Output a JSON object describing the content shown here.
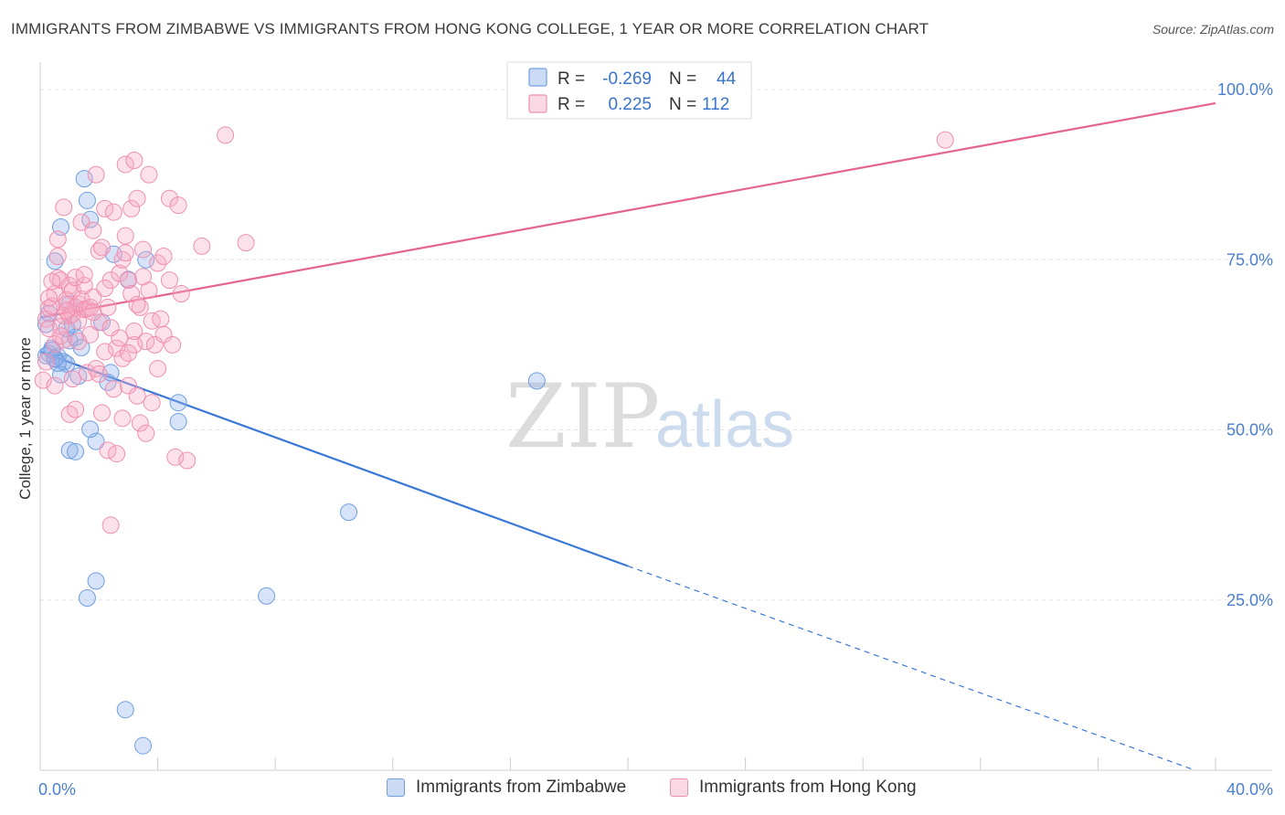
{
  "header": {
    "title": "IMMIGRANTS FROM ZIMBABWE VS IMMIGRANTS FROM HONG KONG COLLEGE, 1 YEAR OR MORE CORRELATION CHART",
    "source": "Source: ZipAtlas.com"
  },
  "watermark": {
    "zip": "ZIP",
    "atlas": "atlas"
  },
  "stats_legend": {
    "rows": [
      {
        "r_label": "R =",
        "r_value": "-0.269",
        "n_label": "N =",
        "n_value": "44",
        "color": "#6f9fe0"
      },
      {
        "r_label": "R =",
        "r_value": "0.225",
        "n_label": "N =",
        "n_value": "112",
        "color": "#ef8fb0"
      }
    ]
  },
  "chart_data": {
    "type": "scatter",
    "ylabel": "College, 1 year or more",
    "xlim": [
      0,
      40
    ],
    "ylim": [
      0,
      100
    ],
    "x_tick_labels": [
      "0.0%",
      "40.0%"
    ],
    "y_tick_labels": [
      "25.0%",
      "50.0%",
      "75.0%",
      "100.0%"
    ],
    "y_ticks": [
      25,
      50,
      75,
      100
    ],
    "grid": true,
    "legend_position": "bottom",
    "series": [
      {
        "name": "Immigrants from Zimbabwe",
        "color": "#6f9fe0",
        "fill": "rgba(140,175,235,0.35)",
        "points": [
          [
            0.3,
            61.2
          ],
          [
            0.5,
            60.4
          ],
          [
            0.4,
            62.0
          ],
          [
            0.6,
            60.8
          ],
          [
            0.2,
            65.5
          ],
          [
            0.5,
            74.8
          ],
          [
            0.7,
            79.8
          ],
          [
            0.8,
            60.0
          ],
          [
            0.9,
            59.7
          ],
          [
            1.0,
            63.1
          ],
          [
            1.1,
            65.5
          ],
          [
            1.0,
            68.5
          ],
          [
            0.7,
            58.1
          ],
          [
            1.2,
            63.6
          ],
          [
            1.3,
            57.9
          ],
          [
            1.4,
            62.1
          ],
          [
            1.5,
            86.9
          ],
          [
            1.6,
            83.7
          ],
          [
            1.7,
            80.9
          ],
          [
            2.1,
            65.8
          ],
          [
            1.9,
            48.3
          ],
          [
            2.3,
            57.0
          ],
          [
            2.4,
            58.4
          ],
          [
            2.5,
            75.8
          ],
          [
            1.7,
            50.1
          ],
          [
            1.0,
            47.0
          ],
          [
            1.2,
            46.8
          ],
          [
            3.0,
            72.1
          ],
          [
            3.6,
            75.0
          ],
          [
            4.7,
            54.0
          ],
          [
            4.7,
            51.2
          ],
          [
            1.9,
            27.8
          ],
          [
            1.6,
            25.3
          ],
          [
            7.7,
            25.6
          ],
          [
            2.9,
            8.9
          ],
          [
            3.5,
            3.6
          ],
          [
            10.5,
            37.9
          ],
          [
            16.9,
            57.2
          ],
          [
            0.2,
            60.9
          ],
          [
            0.3,
            67.1
          ],
          [
            0.4,
            61.7
          ],
          [
            0.5,
            60.5
          ],
          [
            0.6,
            59.8
          ],
          [
            0.9,
            64.9
          ]
        ],
        "trend": {
          "x0": 0,
          "y0": 61.5,
          "x1": 20,
          "y1": 30.0,
          "dash_to_x": 39.3,
          "dash_to_y": 0
        }
      },
      {
        "name": "Immigrants from Hong Kong",
        "color": "#ef8fb0",
        "fill": "rgba(245,170,195,0.35)",
        "points": [
          [
            0.1,
            57.3
          ],
          [
            0.2,
            60.0
          ],
          [
            0.2,
            66.3
          ],
          [
            0.3,
            64.9
          ],
          [
            0.3,
            67.9
          ],
          [
            0.4,
            68.2
          ],
          [
            0.5,
            62.6
          ],
          [
            0.5,
            70.0
          ],
          [
            0.6,
            72.3
          ],
          [
            0.6,
            78.0
          ],
          [
            0.7,
            72.0
          ],
          [
            0.7,
            65.2
          ],
          [
            0.8,
            63.2
          ],
          [
            0.8,
            66.8
          ],
          [
            0.8,
            82.7
          ],
          [
            0.9,
            68.5
          ],
          [
            0.9,
            69.1
          ],
          [
            1.0,
            71.2
          ],
          [
            1.0,
            66.8
          ],
          [
            1.0,
            52.3
          ],
          [
            1.1,
            67.0
          ],
          [
            1.1,
            70.5
          ],
          [
            1.2,
            68.0
          ],
          [
            1.2,
            72.4
          ],
          [
            1.3,
            68.5
          ],
          [
            1.3,
            66.0
          ],
          [
            1.4,
            69.2
          ],
          [
            1.4,
            80.5
          ],
          [
            1.5,
            67.7
          ],
          [
            1.5,
            71.2
          ],
          [
            1.6,
            67.8
          ],
          [
            1.6,
            58.4
          ],
          [
            1.7,
            64.0
          ],
          [
            1.7,
            68.0
          ],
          [
            1.8,
            69.5
          ],
          [
            1.8,
            79.3
          ],
          [
            1.9,
            87.5
          ],
          [
            1.9,
            59.0
          ],
          [
            2.0,
            65.8
          ],
          [
            2.0,
            76.3
          ],
          [
            2.1,
            76.8
          ],
          [
            2.1,
            52.5
          ],
          [
            2.2,
            82.5
          ],
          [
            2.2,
            61.5
          ],
          [
            2.3,
            68.0
          ],
          [
            2.3,
            47.0
          ],
          [
            2.4,
            72.0
          ],
          [
            2.4,
            65.0
          ],
          [
            2.5,
            56.0
          ],
          [
            2.5,
            82.0
          ],
          [
            2.6,
            62.0
          ],
          [
            2.6,
            46.5
          ],
          [
            2.7,
            73.0
          ],
          [
            2.7,
            63.5
          ],
          [
            2.8,
            75.0
          ],
          [
            2.8,
            60.5
          ],
          [
            2.9,
            78.5
          ],
          [
            2.9,
            89.0
          ],
          [
            3.0,
            72.0
          ],
          [
            3.0,
            56.5
          ],
          [
            3.1,
            70.0
          ],
          [
            3.1,
            82.5
          ],
          [
            3.2,
            62.5
          ],
          [
            3.2,
            64.5
          ],
          [
            3.3,
            84.0
          ],
          [
            3.3,
            55.0
          ],
          [
            3.4,
            68.0
          ],
          [
            3.4,
            51.0
          ],
          [
            3.5,
            72.5
          ],
          [
            3.5,
            76.5
          ],
          [
            3.6,
            63.0
          ],
          [
            3.6,
            49.5
          ],
          [
            3.7,
            87.5
          ],
          [
            3.7,
            70.5
          ],
          [
            3.8,
            66.0
          ],
          [
            3.9,
            62.5
          ],
          [
            4.0,
            74.5
          ],
          [
            4.0,
            59.0
          ],
          [
            4.2,
            75.5
          ],
          [
            4.2,
            64.0
          ],
          [
            4.4,
            72.0
          ],
          [
            4.4,
            84.0
          ],
          [
            4.5,
            62.5
          ],
          [
            4.6,
            46.0
          ],
          [
            4.7,
            83.0
          ],
          [
            4.8,
            70.0
          ],
          [
            5.0,
            45.5
          ],
          [
            5.5,
            77.0
          ],
          [
            6.3,
            93.3
          ],
          [
            7.0,
            77.5
          ],
          [
            3.2,
            89.6
          ],
          [
            2.4,
            36.0
          ],
          [
            1.2,
            53.0
          ],
          [
            1.5,
            72.8
          ],
          [
            0.9,
            67.5
          ],
          [
            1.1,
            57.5
          ],
          [
            0.7,
            63.8
          ],
          [
            2.0,
            58.2
          ],
          [
            3.0,
            61.3
          ],
          [
            2.8,
            51.7
          ],
          [
            1.8,
            67.3
          ],
          [
            0.4,
            71.8
          ],
          [
            0.6,
            75.5
          ],
          [
            2.9,
            76.0
          ],
          [
            3.3,
            68.4
          ],
          [
            4.1,
            66.3
          ],
          [
            1.3,
            63.0
          ],
          [
            0.5,
            56.5
          ],
          [
            2.2,
            70.8
          ],
          [
            3.8,
            54.0
          ],
          [
            0.3,
            69.4
          ],
          [
            30.8,
            92.6
          ]
        ],
        "trend": {
          "x0": 0,
          "y0": 66.5,
          "x1": 40,
          "y1": 98.0
        }
      }
    ]
  }
}
